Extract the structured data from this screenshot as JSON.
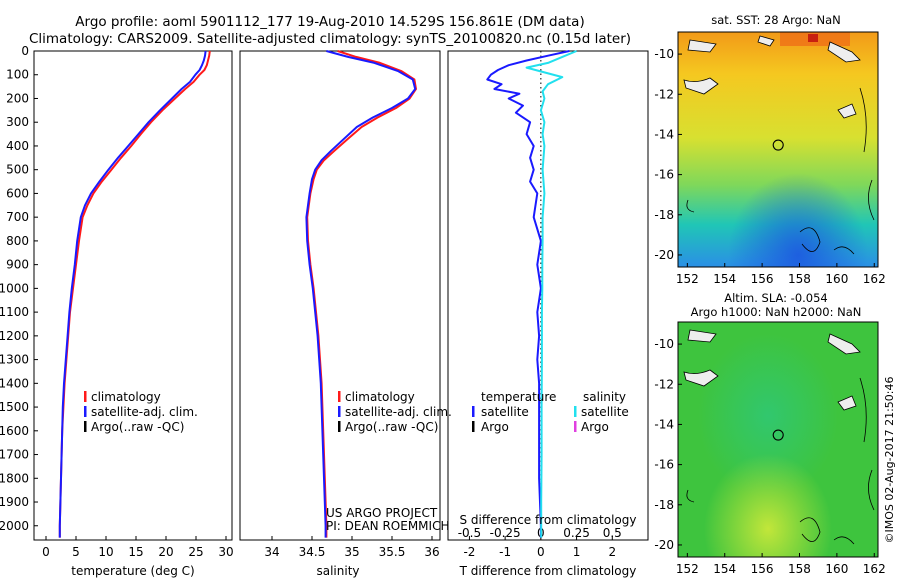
{
  "header": {
    "line1": "Argo profile: aoml 5901112_177 19-Aug-2010 14.529S 156.861E (DM data)",
    "line2": "Climatology: CARS2009. Satellite-adjusted climatology: synTS_20100820.nc (0.15d later)"
  },
  "credit": "©IMOS 02-Aug-2017 21:50:46",
  "colors": {
    "climatology": "#ff1a1a",
    "satellite": "#1a1aff",
    "argo": "#000000",
    "salinity_satellite": "#22e0ee",
    "salinity_argo": "#e040e0"
  },
  "chart_data": [
    {
      "type": "line",
      "id": "temperature",
      "xlabel": "temperature (deg C)",
      "ylabel": "",
      "xlim": [
        -2,
        31
      ],
      "ylim": [
        2060,
        0
      ],
      "xticks": [
        0,
        5,
        10,
        15,
        20,
        25,
        30
      ],
      "yticks": [
        0,
        100,
        200,
        300,
        400,
        500,
        600,
        700,
        800,
        900,
        1000,
        1100,
        1200,
        1300,
        1400,
        1500,
        1600,
        1700,
        1800,
        1900,
        2000
      ],
      "legend": [
        "climatology",
        "satellite-adj. clim.",
        "Argo(..raw -QC)"
      ],
      "series": [
        {
          "name": "climatology",
          "color": "#ff1a1a",
          "points": [
            [
              27.3,
              0
            ],
            [
              27.2,
              20
            ],
            [
              27.0,
              40
            ],
            [
              26.8,
              60
            ],
            [
              26.4,
              80
            ],
            [
              25.6,
              100
            ],
            [
              24.6,
              130
            ],
            [
              23.2,
              160
            ],
            [
              21.5,
              200
            ],
            [
              19.4,
              250
            ],
            [
              17.5,
              300
            ],
            [
              15.8,
              350
            ],
            [
              14.2,
              400
            ],
            [
              12.5,
              450
            ],
            [
              10.9,
              500
            ],
            [
              9.3,
              550
            ],
            [
              7.9,
              600
            ],
            [
              6.9,
              650
            ],
            [
              6.1,
              700
            ],
            [
              5.5,
              800
            ],
            [
              5.0,
              900
            ],
            [
              4.5,
              1000
            ],
            [
              4.0,
              1100
            ],
            [
              3.7,
              1200
            ],
            [
              3.4,
              1300
            ],
            [
              3.1,
              1400
            ],
            [
              2.9,
              1500
            ],
            [
              2.7,
              1600
            ],
            [
              2.6,
              1700
            ],
            [
              2.5,
              1800
            ],
            [
              2.4,
              1900
            ],
            [
              2.3,
              2000
            ],
            [
              2.3,
              2050
            ]
          ]
        },
        {
          "name": "satellite-adj. clim.",
          "color": "#1a1aff",
          "points": [
            [
              26.6,
              0
            ],
            [
              26.5,
              20
            ],
            [
              26.3,
              40
            ],
            [
              26.0,
              60
            ],
            [
              25.6,
              80
            ],
            [
              24.9,
              100
            ],
            [
              24.0,
              130
            ],
            [
              22.6,
              160
            ],
            [
              21.0,
              200
            ],
            [
              19.0,
              250
            ],
            [
              17.1,
              300
            ],
            [
              15.4,
              350
            ],
            [
              13.7,
              400
            ],
            [
              12.0,
              450
            ],
            [
              10.4,
              500
            ],
            [
              8.9,
              550
            ],
            [
              7.5,
              600
            ],
            [
              6.5,
              650
            ],
            [
              5.8,
              700
            ],
            [
              5.2,
              800
            ],
            [
              4.8,
              900
            ],
            [
              4.3,
              1000
            ],
            [
              3.9,
              1100
            ],
            [
              3.6,
              1200
            ],
            [
              3.3,
              1300
            ],
            [
              3.0,
              1400
            ],
            [
              2.8,
              1500
            ],
            [
              2.7,
              1600
            ],
            [
              2.6,
              1700
            ],
            [
              2.5,
              1800
            ],
            [
              2.4,
              1900
            ],
            [
              2.3,
              2000
            ],
            [
              2.3,
              2050
            ]
          ]
        }
      ]
    },
    {
      "type": "line",
      "id": "salinity",
      "xlabel": "salinity",
      "ylabel": "",
      "xlim": [
        33.6,
        36.1
      ],
      "ylim": [
        2060,
        0
      ],
      "xticks": [
        34,
        34.5,
        35,
        35.5,
        36
      ],
      "legend": [
        "climatology",
        "satellite-adj. clim.",
        "Argo(..raw -QC)"
      ],
      "annotations": [
        "US ARGO PROJECT",
        "PI: DEAN ROEMMICH"
      ],
      "series": [
        {
          "name": "climatology",
          "color": "#ff1a1a",
          "points": [
            [
              34.82,
              0
            ],
            [
              35.05,
              25
            ],
            [
              35.35,
              50
            ],
            [
              35.62,
              85
            ],
            [
              35.78,
              120
            ],
            [
              35.8,
              160
            ],
            [
              35.72,
              200
            ],
            [
              35.55,
              240
            ],
            [
              35.32,
              280
            ],
            [
              35.12,
              320
            ],
            [
              34.95,
              370
            ],
            [
              34.78,
              420
            ],
            [
              34.65,
              460
            ],
            [
              34.56,
              500
            ],
            [
              34.52,
              540
            ],
            [
              34.48,
              600
            ],
            [
              34.46,
              650
            ],
            [
              34.44,
              700
            ],
            [
              34.45,
              800
            ],
            [
              34.48,
              900
            ],
            [
              34.52,
              1000
            ],
            [
              34.55,
              1100
            ],
            [
              34.58,
              1200
            ],
            [
              34.6,
              1300
            ],
            [
              34.62,
              1400
            ],
            [
              34.63,
              1500
            ],
            [
              34.64,
              1600
            ],
            [
              34.65,
              1700
            ],
            [
              34.66,
              1800
            ],
            [
              34.67,
              1900
            ],
            [
              34.68,
              2000
            ],
            [
              34.68,
              2050
            ]
          ]
        },
        {
          "name": "satellite-adj. clim.",
          "color": "#1a1aff",
          "points": [
            [
              34.68,
              0
            ],
            [
              34.95,
              25
            ],
            [
              35.28,
              50
            ],
            [
              35.58,
              85
            ],
            [
              35.76,
              120
            ],
            [
              35.79,
              160
            ],
            [
              35.7,
              200
            ],
            [
              35.5,
              240
            ],
            [
              35.26,
              280
            ],
            [
              35.06,
              320
            ],
            [
              34.9,
              370
            ],
            [
              34.74,
              420
            ],
            [
              34.62,
              460
            ],
            [
              34.54,
              500
            ],
            [
              34.5,
              540
            ],
            [
              34.47,
              600
            ],
            [
              34.45,
              650
            ],
            [
              34.43,
              700
            ],
            [
              34.44,
              800
            ],
            [
              34.47,
              900
            ],
            [
              34.51,
              1000
            ],
            [
              34.54,
              1100
            ],
            [
              34.57,
              1200
            ],
            [
              34.59,
              1300
            ],
            [
              34.61,
              1400
            ],
            [
              34.62,
              1500
            ],
            [
              34.63,
              1600
            ],
            [
              34.64,
              1700
            ],
            [
              34.65,
              1800
            ],
            [
              34.66,
              1900
            ],
            [
              34.67,
              2000
            ],
            [
              34.67,
              2050
            ]
          ]
        }
      ]
    },
    {
      "type": "line",
      "id": "difference",
      "xlabel": "T difference from climatology",
      "xlabel_top": "S difference from climatology",
      "xlim": [
        -2.6,
        3.0
      ],
      "ylim": [
        2060,
        0
      ],
      "xticks": [
        -2,
        -1,
        0,
        1,
        2
      ],
      "s_ticks": [
        [
          -0.5,
          "-0.5"
        ],
        [
          -0.25,
          "-0.25"
        ],
        [
          0,
          "0"
        ],
        [
          0.25,
          "0.25"
        ],
        [
          0.5,
          "0.5"
        ]
      ],
      "legend": {
        "temperature_header": "temperature",
        "salinity_header": "salinity",
        "satellite": "satellite",
        "argo": "Argo"
      },
      "series": [
        {
          "name": "temperature satellite",
          "color": "#1a1aff",
          "points": [
            [
              0.8,
              0
            ],
            [
              0.2,
              20
            ],
            [
              -0.4,
              40
            ],
            [
              -0.9,
              60
            ],
            [
              -1.2,
              80
            ],
            [
              -1.4,
              100
            ],
            [
              -1.5,
              120
            ],
            [
              -1.1,
              140
            ],
            [
              -1.3,
              160
            ],
            [
              -0.6,
              180
            ],
            [
              -0.9,
              200
            ],
            [
              -0.5,
              230
            ],
            [
              -0.7,
              260
            ],
            [
              -0.3,
              300
            ],
            [
              -0.4,
              350
            ],
            [
              -0.2,
              400
            ],
            [
              -0.3,
              450
            ],
            [
              -0.2,
              500
            ],
            [
              -0.3,
              550
            ],
            [
              -0.1,
              600
            ],
            [
              -0.2,
              700
            ],
            [
              0.0,
              800
            ],
            [
              -0.1,
              900
            ],
            [
              0.0,
              1000
            ],
            [
              -0.1,
              1100
            ],
            [
              -0.05,
              1200
            ],
            [
              -0.1,
              1300
            ],
            [
              -0.05,
              1400
            ],
            [
              -0.05,
              1600
            ],
            [
              -0.05,
              1800
            ],
            [
              0.0,
              2000
            ],
            [
              0.0,
              2050
            ]
          ]
        },
        {
          "name": "salinity satellite",
          "color": "#22e0ee",
          "points": [
            [
              1.0,
              0
            ],
            [
              0.6,
              25
            ],
            [
              0.2,
              50
            ],
            [
              -0.4,
              70
            ],
            [
              0.1,
              90
            ],
            [
              0.6,
              110
            ],
            [
              0.2,
              140
            ],
            [
              0.05,
              170
            ],
            [
              0.1,
              200
            ],
            [
              0.0,
              250
            ],
            [
              0.1,
              300
            ],
            [
              0.05,
              350
            ],
            [
              0.1,
              400
            ],
            [
              0.05,
              500
            ],
            [
              0.1,
              600
            ],
            [
              0.05,
              700
            ],
            [
              0.05,
              800
            ],
            [
              0.04,
              900
            ],
            [
              0.04,
              1000
            ],
            [
              0.03,
              1100
            ],
            [
              0.03,
              1300
            ],
            [
              0.02,
              1500
            ],
            [
              0.02,
              1700
            ],
            [
              0.01,
              1900
            ],
            [
              0.01,
              2050
            ]
          ]
        }
      ]
    },
    {
      "type": "heatmap",
      "id": "sst-map",
      "title": "sat. SST: 28 Argo: NaN",
      "xlim": [
        151.5,
        162.2
      ],
      "ylim": [
        -20.6,
        -8.9
      ],
      "xticks": [
        152,
        154,
        156,
        158,
        160,
        162
      ],
      "yticks": [
        -10,
        -12,
        -14,
        -16,
        -18,
        -20
      ],
      "profile_location": [
        156.861,
        -14.529
      ]
    },
    {
      "type": "heatmap",
      "id": "sla-map",
      "title": "Altim. SLA: -0.054",
      "subtitle": "Argo h1000: NaN h2000: NaN",
      "xlim": [
        151.5,
        162.2
      ],
      "ylim": [
        -20.6,
        -8.9
      ],
      "xticks": [
        152,
        154,
        156,
        158,
        160,
        162
      ],
      "yticks": [
        -10,
        -12,
        -14,
        -16,
        -18,
        -20
      ],
      "profile_location": [
        156.861,
        -14.529
      ]
    }
  ]
}
